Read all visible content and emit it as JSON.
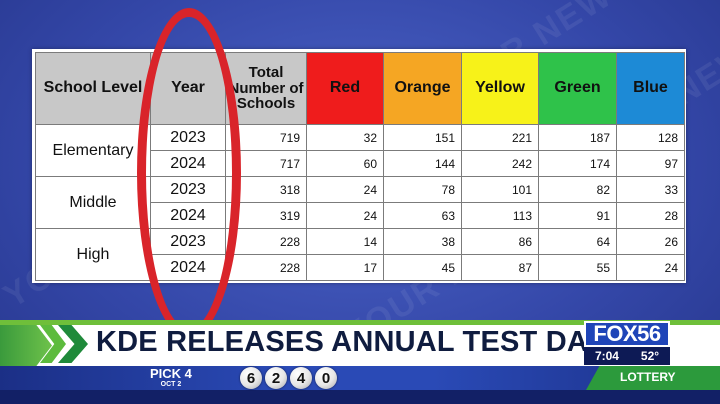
{
  "table": {
    "headers": {
      "school_level": "School Level",
      "year": "Year",
      "total": "Total Number of Schools",
      "red": "Red",
      "orange": "Orange",
      "yellow": "Yellow",
      "green": "Green",
      "blue": "Blue"
    },
    "header_colors": {
      "red": "#ef1c1c",
      "orange": "#f5a623",
      "yellow": "#f7f219",
      "green": "#2fc24a",
      "blue": "#1d8ad6"
    },
    "groups": [
      {
        "level": "Elementary",
        "rows": [
          {
            "year": "2023",
            "total": "719",
            "red": "32",
            "orange": "151",
            "yellow": "221",
            "green": "187",
            "blue": "128"
          },
          {
            "year": "2024",
            "total": "717",
            "red": "60",
            "orange": "144",
            "yellow": "242",
            "green": "174",
            "blue": "97"
          }
        ]
      },
      {
        "level": "Middle",
        "rows": [
          {
            "year": "2023",
            "total": "318",
            "red": "24",
            "orange": "78",
            "yellow": "101",
            "green": "82",
            "blue": "33"
          },
          {
            "year": "2024",
            "total": "319",
            "red": "24",
            "orange": "63",
            "yellow": "113",
            "green": "91",
            "blue": "28"
          }
        ]
      },
      {
        "level": "High",
        "rows": [
          {
            "year": "2023",
            "total": "228",
            "red": "14",
            "orange": "38",
            "yellow": "86",
            "green": "64",
            "blue": "26"
          },
          {
            "year": "2024",
            "total": "228",
            "red": "17",
            "orange": "45",
            "yellow": "87",
            "green": "55",
            "blue": "24"
          }
        ]
      }
    ]
  },
  "background": {
    "watermark_text": "YOUR NEWS"
  },
  "lower_third": {
    "headline": "KDE RELEASES ANNUAL TEST DATA",
    "logo": {
      "brand": "FOX56",
      "time": "7:04",
      "temp": "52°"
    },
    "ticker": {
      "game": "PICK 4",
      "date": "OCT 2",
      "numbers": [
        "6",
        "2",
        "4",
        "0"
      ],
      "section": "LOTTERY"
    }
  },
  "colors": {
    "annotation_ellipse": "#d9242a",
    "banner_green": "#2c9a3c",
    "ticker_blue": "#2a4ab6"
  }
}
